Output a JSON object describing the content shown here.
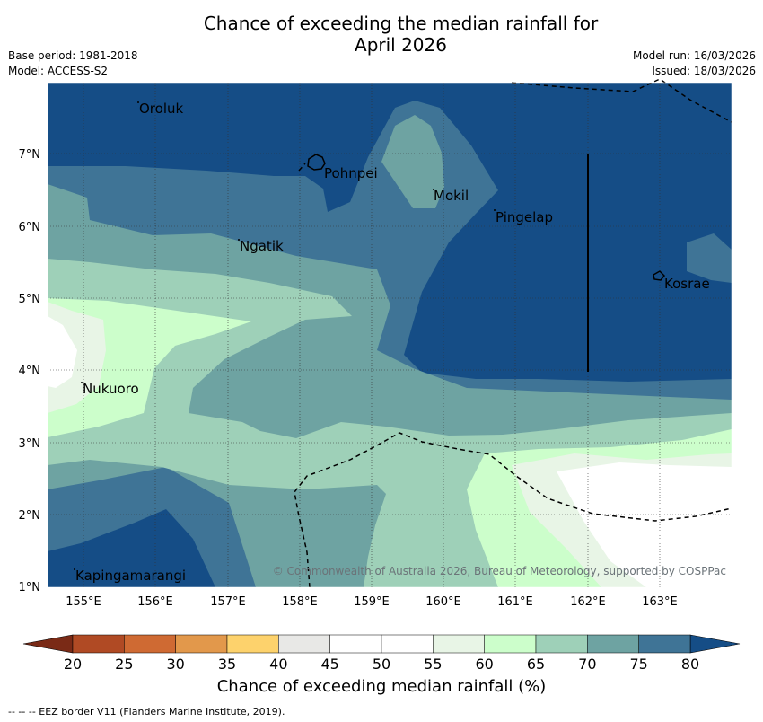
{
  "title_line1": "Chance of exceeding the median rainfall for",
  "title_line2": "April 2026",
  "base_period": "Base period: 1981-2018",
  "model": "Model: ACCESS-S2",
  "model_run": "Model run: 16/03/2026",
  "issued": "Issued: 18/03/2026",
  "places": {
    "oroluk": "Oroluk",
    "pohnpei": "Pohnpei",
    "mokil": "Mokil",
    "pingelap": "Pingelap",
    "ngatik": "Ngatik",
    "kosrae": "Kosrae",
    "nukuoro": "Nukuoro",
    "kapingamarangi": "Kapingamarangi"
  },
  "lat_ticks": [
    "7°N",
    "6°N",
    "5°N",
    "4°N",
    "3°N",
    "2°N",
    "1°N"
  ],
  "lon_ticks": [
    "155°E",
    "156°E",
    "157°E",
    "158°E",
    "159°E",
    "160°E",
    "161°E",
    "162°E",
    "163°E"
  ],
  "copyright": "© Commonwealth of Australia 2026, Bureau of Meteorology, supported by COSPPac",
  "colorbar": {
    "ticks": [
      "20",
      "25",
      "30",
      "35",
      "40",
      "45",
      "50",
      "55",
      "60",
      "65",
      "70",
      "75",
      "80"
    ],
    "label": "Chance of exceeding median rainfall (%)",
    "colors": [
      "#7a2a16",
      "#b04a24",
      "#cf6a33",
      "#e2984b",
      "#fdd26c",
      "#e8e8e6",
      "#ffffff",
      "#ffffff",
      "#e8f5e6",
      "#ccfecb",
      "#9ed0b8",
      "#6ea3a2",
      "#3f7496",
      "#154d86"
    ]
  },
  "eez_note": "--  --  -- EEZ border V11 (Flanders Marine Institute, 2019).",
  "colors": {
    "c80": "#154d86",
    "c75": "#3f7496",
    "c70": "#6ea3a2",
    "c65": "#9ed0b8",
    "c60": "#ccfecb",
    "c55": "#e8f5e6",
    "c50": "#ffffff"
  }
}
